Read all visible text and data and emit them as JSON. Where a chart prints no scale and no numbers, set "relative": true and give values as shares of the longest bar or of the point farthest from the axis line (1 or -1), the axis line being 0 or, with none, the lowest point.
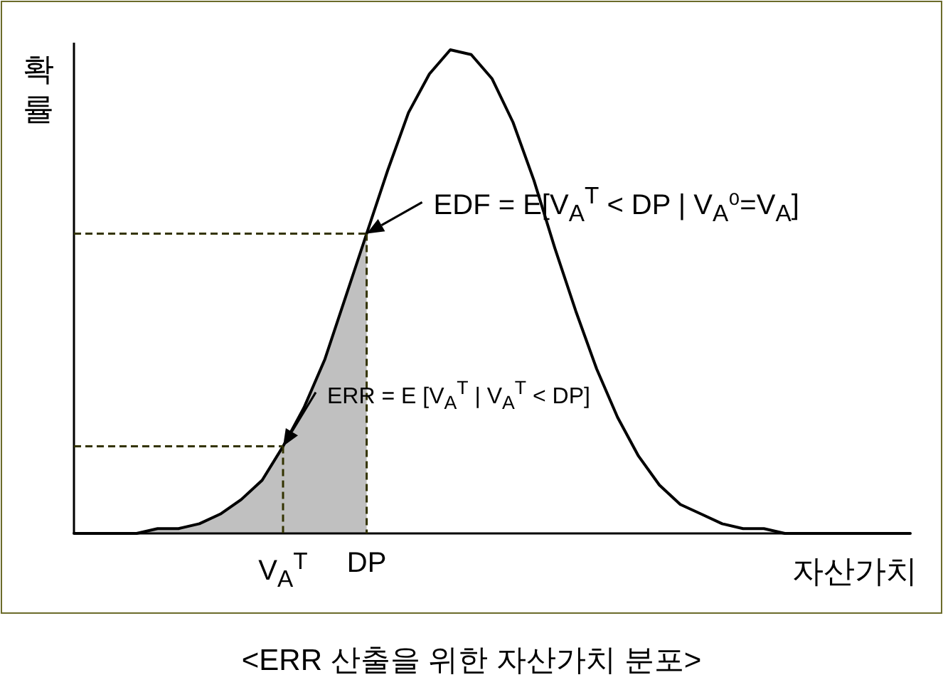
{
  "chart_data": {
    "type": "line",
    "relative": true,
    "title": "<ERR 산출을 위한 자산가치 분포>",
    "xlabel": "자산가치",
    "ylabel": "확률",
    "categories": [
      null,
      null,
      null,
      null,
      null,
      null,
      null,
      null,
      null,
      null,
      "V$_{A}$$^{T}$",
      null,
      null,
      null,
      "DP",
      null,
      null,
      null,
      null,
      null,
      null,
      null,
      null,
      null,
      null,
      null,
      null,
      null,
      null,
      null,
      null,
      null,
      null,
      null,
      null,
      null,
      null,
      null,
      null,
      null,
      null
    ],
    "series": [
      {
        "type": "area",
        "color": "#c0c0c0",
        "values": [
          0,
          0,
          0,
          0,
          0.01,
          0.01,
          0.02,
          0.04,
          0.07,
          0.11,
          0.18,
          0.26,
          0.36,
          0.49,
          0.62,
          null,
          null,
          null,
          null,
          null,
          null,
          null,
          null,
          null,
          null,
          null,
          null,
          null,
          null,
          null,
          null,
          null,
          null,
          null,
          null,
          null,
          null,
          null,
          null,
          null,
          null
        ]
      },
      {
        "color": "#000000",
        "values": [
          0,
          0,
          0,
          0,
          0.01,
          0.01,
          0.02,
          0.04,
          0.07,
          0.11,
          0.18,
          0.26,
          0.36,
          0.49,
          0.62,
          0.75,
          0.87,
          0.95,
          1,
          0.99,
          0.94,
          0.85,
          0.73,
          0.59,
          0.46,
          0.34,
          0.24,
          0.16,
          0.1,
          0.06,
          0.04,
          0.02,
          0.01,
          0.01,
          0,
          0,
          0,
          0,
          0,
          0,
          0
        ]
      }
    ],
    "annotations": [
      {
        "text": "EDF = E[V$_{A}$$^{T}$ < DP | V$_{A}$⁰=V$_{A}$]",
        "x": "DP",
        "y": 0.62
      },
      {
        "text": "ERR = E [V$_{A}$$^{T}$ | V$_{A}$$^{T}$ < DP]",
        "x": "V$_{A}$$^{T}$",
        "y": 0.18
      }
    ]
  }
}
